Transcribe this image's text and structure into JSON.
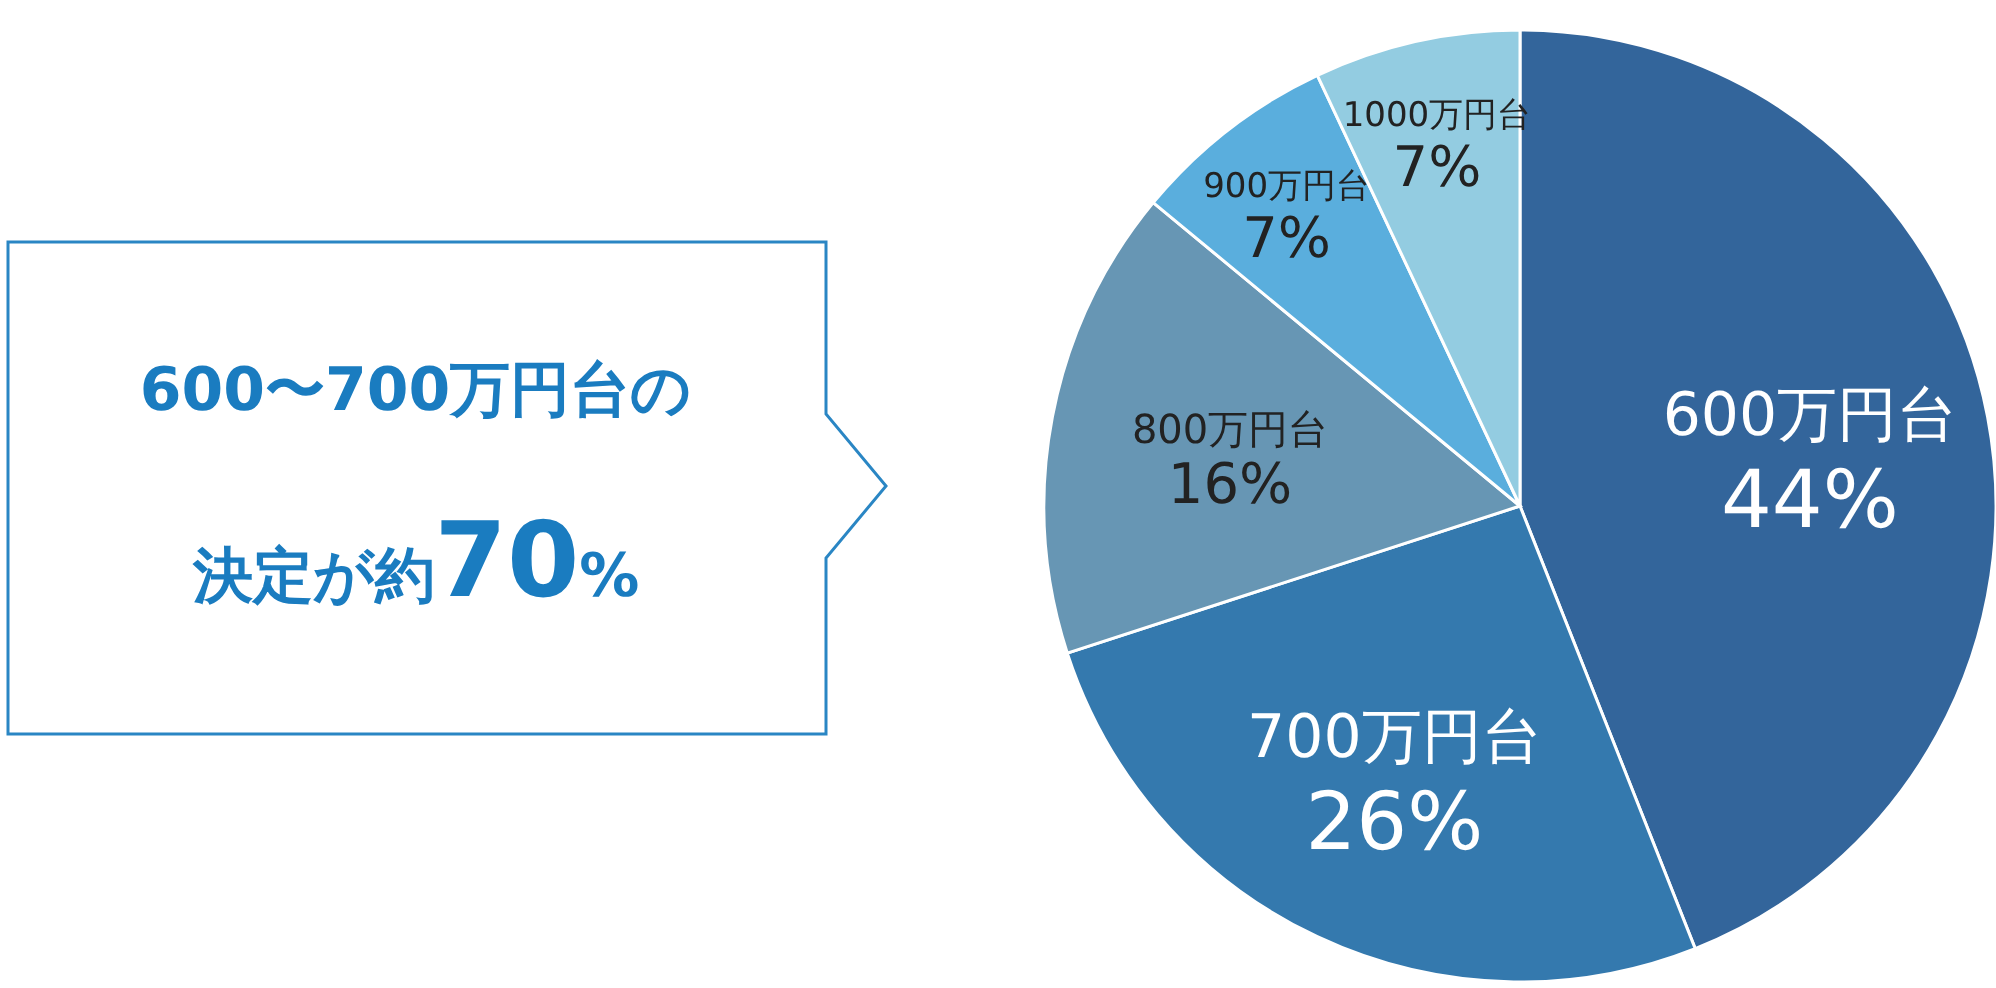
{
  "chart_data": {
    "type": "pie",
    "categories": [
      "600万円台",
      "700万円台",
      "800万円台",
      "900万円台",
      "1000万円台"
    ],
    "values": [
      44,
      26,
      16,
      7,
      7
    ],
    "value_labels": [
      "44%",
      "26%",
      "16%",
      "7%",
      "7%"
    ],
    "colors": [
      "#33659b",
      "#3479ae",
      "#6796b4",
      "#5aaedd",
      "#93cce1"
    ],
    "annotations": [
      "600〜700万円台の",
      "決定が約70%"
    ]
  }
}
